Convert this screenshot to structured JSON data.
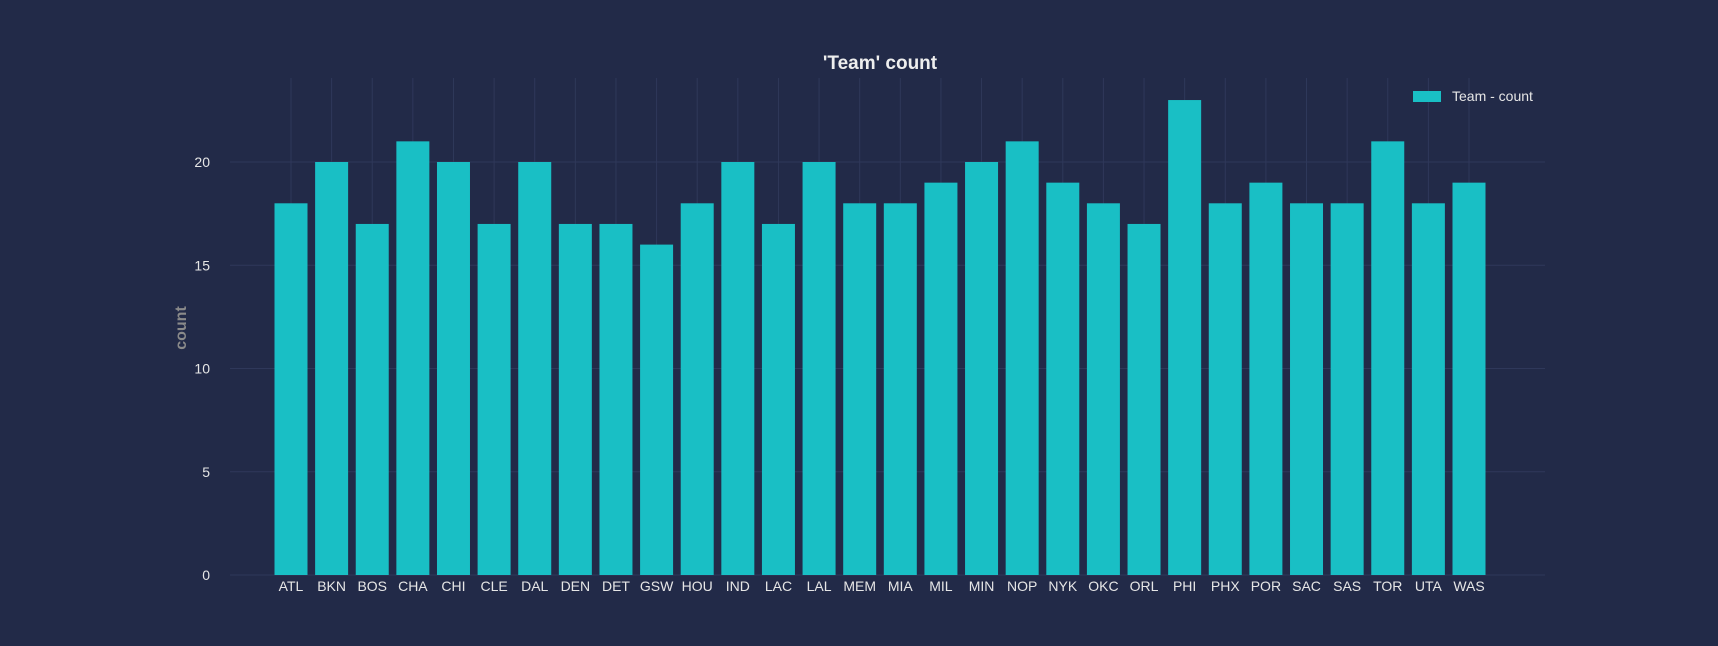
{
  "chart_data": {
    "type": "bar",
    "title": "'Team' count",
    "xlabel": "",
    "ylabel": "count",
    "ylim": [
      0,
      24
    ],
    "yticks": [
      0,
      5,
      10,
      15,
      20
    ],
    "grid": true,
    "legend_position": "top-right",
    "bar_color": "#19bfc5",
    "categories": [
      "ATL",
      "BKN",
      "BOS",
      "CHA",
      "CHI",
      "CLE",
      "DAL",
      "DEN",
      "DET",
      "GSW",
      "HOU",
      "IND",
      "LAC",
      "LAL",
      "MEM",
      "MIA",
      "MIL",
      "MIN",
      "NOP",
      "NYK",
      "OKC",
      "ORL",
      "PHI",
      "PHX",
      "POR",
      "SAC",
      "SAS",
      "TOR",
      "UTA",
      "WAS"
    ],
    "series": [
      {
        "name": "Team - count",
        "values": [
          18,
          20,
          17,
          21,
          20,
          17,
          20,
          17,
          17,
          16,
          18,
          20,
          17,
          20,
          18,
          18,
          19,
          20,
          21,
          19,
          18,
          17,
          23,
          18,
          19,
          18,
          18,
          21,
          18,
          19
        ]
      }
    ]
  }
}
